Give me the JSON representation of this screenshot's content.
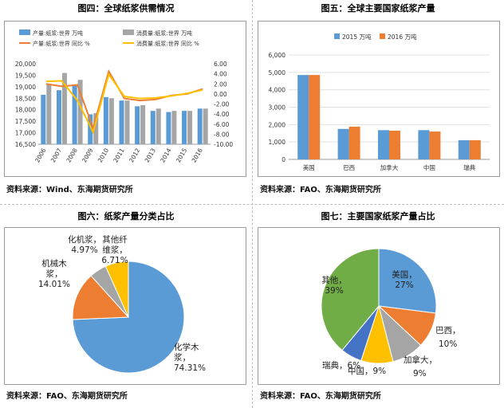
{
  "panels": {
    "p1_title": "图四：全球纸浆供需情况",
    "p2_title": "图五：全球主要国家纸浆产量",
    "p3_title": "图六：纸浆产量分类占比",
    "p4_title": "图七：主要国家纸浆产量占比",
    "source1": "资料来源：Wind、东海期货研究所",
    "source2": "资料来源：FAO、东海期货研究所",
    "source3": "资料来源：FAO、东海期货研究所",
    "source4": "资料来源：FAO、东海期货研究所"
  },
  "colors": {
    "blue": "#5B9BD5",
    "gray": "#A5A5A5",
    "orange": "#ED7D31",
    "gold": "#FFC000",
    "green": "#70AD47",
    "darkblue": "#4472C4"
  },
  "chart_data": [
    {
      "type": "bar",
      "title": "",
      "categories": [
        "2006",
        "2007",
        "2008",
        "2009",
        "2010",
        "2011",
        "2012",
        "2013",
        "2014",
        "2015",
        "2016"
      ],
      "series": [
        {
          "name": "产量:纸浆:世界 万吨",
          "type": "bar",
          "axis": "left",
          "values": [
            18650,
            18850,
            19100,
            17800,
            18550,
            18400,
            18150,
            17950,
            17900,
            17950,
            18050
          ]
        },
        {
          "name": "消费量:纸浆:世界 万吨",
          "type": "bar",
          "axis": "left",
          "values": [
            19100,
            19600,
            19300,
            17850,
            18500,
            18400,
            18200,
            18050,
            17950,
            17950,
            18050
          ]
        },
        {
          "name": "产量:纸浆:世界 同比 %",
          "type": "line",
          "axis": "right",
          "values": [
            2.0,
            1.5,
            1.8,
            -6.8,
            4.5,
            -0.9,
            -1.3,
            -1.1,
            -0.3,
            0.0,
            1.0
          ]
        },
        {
          "name": "消费量:纸浆:世界 同比 %",
          "type": "line",
          "axis": "right",
          "values": [
            2.5,
            2.6,
            -1.3,
            -7.6,
            3.9,
            -0.5,
            -0.9,
            -0.8,
            -0.4,
            0.1,
            0.8
          ]
        }
      ],
      "ylim": [
        16500,
        20000
      ],
      "yticks": [
        "20,000",
        "19,500",
        "19,000",
        "18,500",
        "18,000",
        "17,500",
        "17,000",
        "16,500"
      ],
      "y2lim": [
        -10,
        6
      ],
      "y2ticks": [
        "6.00",
        "4.00",
        "2.00",
        "0.00",
        "-2.00",
        "-4.00",
        "-6.00",
        "-8.00",
        "-10.00"
      ],
      "legend": "top"
    },
    {
      "type": "bar",
      "title": "",
      "categories": [
        "美国",
        "巴西",
        "加拿大",
        "中国",
        "瑞典"
      ],
      "series": [
        {
          "name": "2015 万吨",
          "values": [
            4850,
            1750,
            1680,
            1680,
            1100
          ]
        },
        {
          "name": "2016 万吨",
          "values": [
            4850,
            1880,
            1650,
            1600,
            1100
          ]
        }
      ],
      "ylim": [
        0,
        6000
      ],
      "yticks": [
        "6,000",
        "5,000",
        "4,000",
        "3,000",
        "2,000",
        "1,000",
        "0"
      ],
      "legend": "top"
    },
    {
      "type": "pie",
      "title": "",
      "slices": [
        {
          "label": "化学木浆",
          "pct": "74.31%",
          "value": 74.31
        },
        {
          "label": "机械木浆",
          "pct": "14.01%",
          "value": 14.01
        },
        {
          "label": "化机浆",
          "pct": "4.97%",
          "value": 4.97
        },
        {
          "label": "其他纤维浆",
          "pct": "6.71%",
          "value": 6.71
        }
      ]
    },
    {
      "type": "pie",
      "title": "",
      "slices": [
        {
          "label": "美国",
          "pct": "27%",
          "value": 27
        },
        {
          "label": "巴西",
          "pct": "10%",
          "value": 10
        },
        {
          "label": "加拿大",
          "pct": "9%",
          "value": 9
        },
        {
          "label": "中国",
          "pct": "9%",
          "value": 9
        },
        {
          "label": "瑞典",
          "pct": "6%",
          "value": 6
        },
        {
          "label": "其他",
          "pct": "39%",
          "value": 39
        }
      ]
    }
  ]
}
